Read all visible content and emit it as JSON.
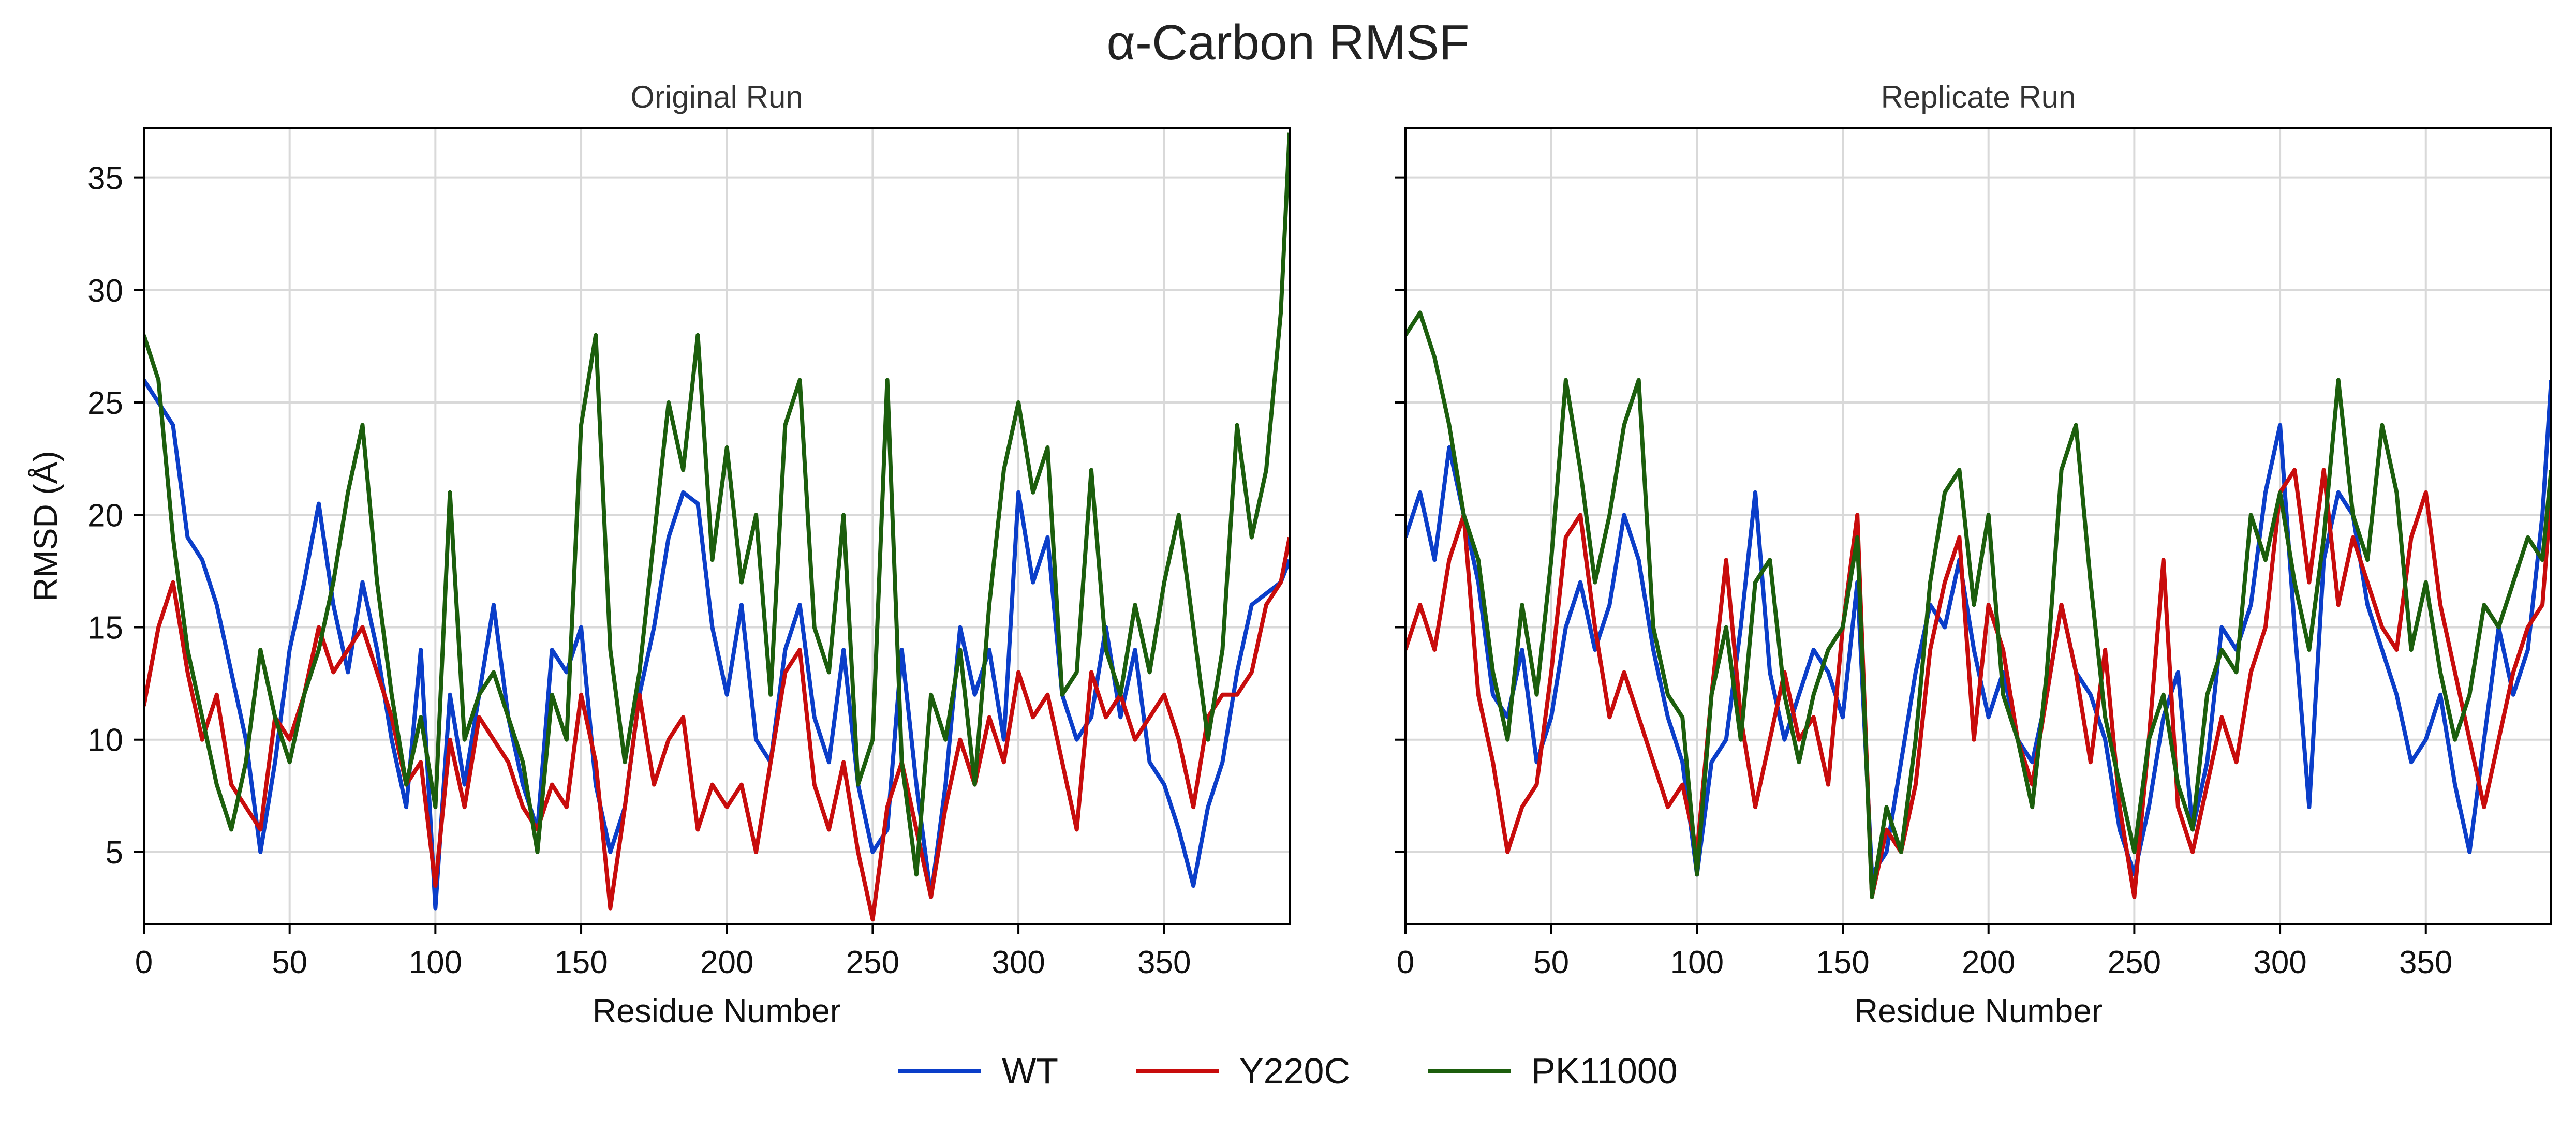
{
  "title": "α-Carbon RMSF",
  "legend": [
    {
      "name": "WT",
      "color": "#0b3ec9"
    },
    {
      "name": "Y220C",
      "color": "#c80c0c"
    },
    {
      "name": "PK11000",
      "color": "#1c5e0d"
    }
  ],
  "chart_data": [
    {
      "type": "line",
      "title": "Original Run",
      "xlabel": "Residue Number",
      "ylabel": "RMSD (Å)",
      "xlim": [
        0,
        393
      ],
      "ylim": [
        1.8,
        37.2
      ],
      "xticks": [
        0,
        50,
        100,
        150,
        200,
        250,
        300,
        350
      ],
      "yticks": [
        5,
        10,
        15,
        20,
        25,
        30,
        35
      ],
      "grid": true,
      "x": [
        0,
        5,
        10,
        15,
        20,
        25,
        30,
        35,
        40,
        45,
        50,
        55,
        60,
        65,
        70,
        75,
        80,
        85,
        90,
        95,
        100,
        105,
        110,
        115,
        120,
        125,
        130,
        135,
        140,
        145,
        150,
        155,
        160,
        165,
        170,
        175,
        180,
        185,
        190,
        195,
        200,
        205,
        210,
        215,
        220,
        225,
        230,
        235,
        240,
        245,
        250,
        255,
        260,
        265,
        270,
        275,
        280,
        285,
        290,
        295,
        300,
        305,
        310,
        315,
        320,
        325,
        330,
        335,
        340,
        345,
        350,
        355,
        360,
        365,
        370,
        375,
        380,
        385,
        390,
        393
      ],
      "series": [
        {
          "name": "WT",
          "values": [
            26,
            25,
            24,
            19,
            18,
            16,
            13,
            10,
            5,
            9,
            14,
            17,
            20.5,
            16,
            13,
            17,
            14,
            10,
            7,
            14,
            2.5,
            12,
            8,
            12,
            16,
            11,
            8,
            6,
            14,
            13,
            15,
            8,
            5,
            7,
            12,
            15,
            19,
            21,
            20.5,
            15,
            12,
            16,
            10,
            9,
            14,
            16,
            11,
            9,
            14,
            8,
            5,
            6,
            14,
            8,
            3,
            8,
            15,
            12,
            14,
            10,
            21,
            17,
            19,
            12,
            10,
            11,
            15,
            11,
            14,
            9,
            8,
            6,
            3.5,
            7,
            9,
            13,
            16,
            16.5,
            17,
            18
          ]
        },
        {
          "name": "Y220C",
          "values": [
            11.5,
            15,
            17,
            13,
            10,
            12,
            8,
            7,
            6,
            11,
            10,
            12,
            15,
            13,
            14,
            15,
            13,
            11,
            8,
            9,
            3.5,
            10,
            7,
            11,
            10,
            9,
            7,
            6,
            8,
            7,
            12,
            9,
            2.5,
            7,
            12,
            8,
            10,
            11,
            6,
            8,
            7,
            8,
            5,
            9,
            13,
            14,
            8,
            6,
            9,
            5,
            2,
            7,
            9,
            6,
            3,
            7,
            10,
            8,
            11,
            9,
            13,
            11,
            12,
            9,
            6,
            13,
            11,
            12,
            10,
            11,
            12,
            10,
            7,
            11,
            12,
            12,
            13,
            16,
            17,
            19
          ]
        },
        {
          "name": "PK11000",
          "values": [
            28,
            26,
            19,
            14,
            11,
            8,
            6,
            9,
            14,
            11,
            9,
            12,
            14,
            17,
            21,
            24,
            17,
            12,
            8,
            11,
            7,
            21,
            10,
            12,
            13,
            11,
            9,
            5,
            12,
            10,
            24,
            28,
            14,
            9,
            13,
            19,
            25,
            22,
            28,
            18,
            23,
            17,
            20,
            12,
            24,
            26,
            15,
            13,
            20,
            8,
            10,
            26,
            9,
            4,
            12,
            10,
            14,
            8,
            16,
            22,
            25,
            21,
            23,
            12,
            13,
            22,
            14,
            12,
            16,
            13,
            17,
            20,
            15,
            10,
            14,
            24,
            19,
            22,
            29,
            37
          ]
        }
      ]
    },
    {
      "type": "line",
      "title": "Replicate Run",
      "xlabel": "Residue Number",
      "ylabel": "",
      "xlim": [
        0,
        393
      ],
      "ylim": [
        1.8,
        37.2
      ],
      "xticks": [
        0,
        50,
        100,
        150,
        200,
        250,
        300,
        350
      ],
      "yticks": [
        5,
        10,
        15,
        20,
        25,
        30,
        35
      ],
      "grid": true,
      "x": [
        0,
        5,
        10,
        15,
        20,
        25,
        30,
        35,
        40,
        45,
        50,
        55,
        60,
        65,
        70,
        75,
        80,
        85,
        90,
        95,
        100,
        105,
        110,
        115,
        120,
        125,
        130,
        135,
        140,
        145,
        150,
        155,
        160,
        165,
        170,
        175,
        180,
        185,
        190,
        195,
        200,
        205,
        210,
        215,
        220,
        225,
        230,
        235,
        240,
        245,
        250,
        255,
        260,
        265,
        270,
        275,
        280,
        285,
        290,
        295,
        300,
        305,
        310,
        315,
        320,
        325,
        330,
        335,
        340,
        345,
        350,
        355,
        360,
        365,
        370,
        375,
        380,
        385,
        390,
        393
      ],
      "series": [
        {
          "name": "WT",
          "values": [
            19,
            21,
            18,
            23,
            20,
            17,
            12,
            11,
            14,
            9,
            11,
            15,
            17,
            14,
            16,
            20,
            18,
            14,
            11,
            9,
            4,
            9,
            10,
            15,
            21,
            13,
            10,
            12,
            14,
            13,
            11,
            17,
            4,
            5,
            9,
            13,
            16,
            15,
            18,
            14,
            11,
            13,
            10,
            9,
            12,
            16,
            13,
            12,
            10,
            6,
            4,
            7,
            11,
            13,
            6,
            9,
            15,
            14,
            16,
            21,
            24,
            15,
            7,
            18,
            21,
            20,
            16,
            14,
            12,
            9,
            10,
            12,
            8,
            5,
            10,
            15,
            12,
            14,
            20,
            26
          ]
        },
        {
          "name": "Y220C",
          "values": [
            14,
            16,
            14,
            18,
            20,
            12,
            9,
            5,
            7,
            8,
            13,
            19,
            20,
            15,
            11,
            13,
            11,
            9,
            7,
            8,
            5,
            12,
            18,
            11,
            7,
            10,
            13,
            10,
            11,
            8,
            15,
            20,
            3,
            6,
            5,
            8,
            14,
            17,
            19,
            10,
            16,
            14,
            10,
            8,
            12,
            16,
            13,
            9,
            14,
            7,
            3,
            10,
            18,
            7,
            5,
            8,
            11,
            9,
            13,
            15,
            21,
            22,
            17,
            22,
            16,
            19,
            17,
            15,
            14,
            19,
            21,
            16,
            13,
            10,
            7,
            10,
            13,
            15,
            16,
            21
          ]
        },
        {
          "name": "PK11000",
          "values": [
            28,
            29,
            27,
            24,
            20,
            18,
            13,
            10,
            16,
            12,
            18,
            26,
            22,
            17,
            20,
            24,
            26,
            15,
            12,
            11,
            4,
            12,
            15,
            10,
            17,
            18,
            12,
            9,
            12,
            14,
            15,
            19,
            3,
            7,
            5,
            10,
            17,
            21,
            22,
            16,
            20,
            12,
            10,
            7,
            13,
            22,
            24,
            17,
            11,
            8,
            5,
            10,
            12,
            8,
            6,
            12,
            14,
            13,
            20,
            18,
            21,
            17,
            14,
            19,
            26,
            20,
            18,
            24,
            21,
            14,
            17,
            13,
            10,
            12,
            16,
            15,
            17,
            19,
            18,
            22
          ]
        }
      ]
    }
  ]
}
